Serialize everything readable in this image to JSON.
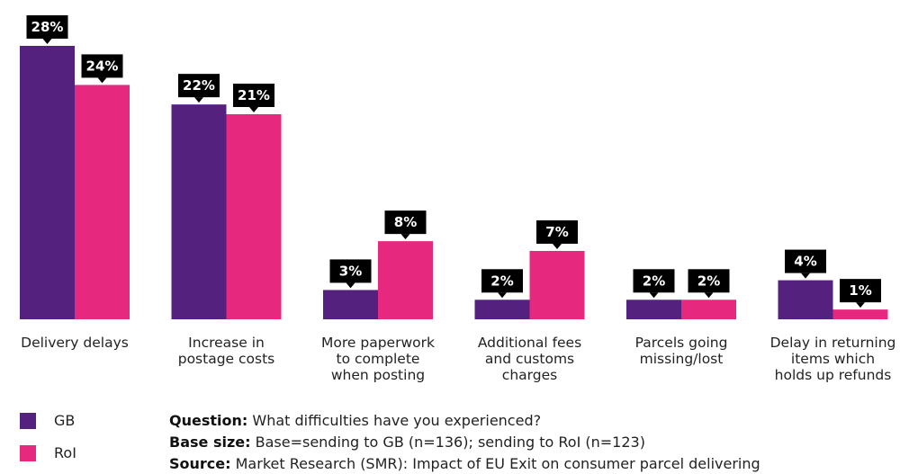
{
  "chart_data": {
    "type": "bar",
    "categories": [
      "Delivery delays",
      "Increase in postage costs",
      "More paperwork to complete when posting",
      "Additional fees and customs charges",
      "Parcels going missing/lost",
      "Delay in returning items which holds up refunds"
    ],
    "category_lines": [
      [
        "Delivery delays"
      ],
      [
        "Increase in",
        "postage costs"
      ],
      [
        "More paperwork",
        "to complete",
        "when posting"
      ],
      [
        "Additional fees",
        "and customs",
        "charges"
      ],
      [
        "Parcels going",
        "missing/lost"
      ],
      [
        "Delay in returning",
        "items which",
        "holds up refunds"
      ]
    ],
    "series": [
      {
        "name": "GB",
        "color": "#55217f",
        "values": [
          28,
          22,
          3,
          2,
          2,
          4
        ],
        "labels": [
          "28%",
          "22%",
          "3%",
          "2%",
          "2%",
          "4%"
        ]
      },
      {
        "name": "RoI",
        "color": "#e6287f",
        "values": [
          24,
          21,
          8,
          7,
          2,
          1
        ],
        "labels": [
          "24%",
          "21%",
          "8%",
          "7%",
          "2%",
          "1%"
        ]
      }
    ],
    "ylim": [
      0,
      30
    ],
    "grid": false,
    "legend_position": "bottom-left"
  },
  "notes": {
    "question_label": "Question:",
    "question_text": "What difficulties have you experienced?",
    "base_label": "Base size:",
    "base_text": "Base=sending to GB (n=136); sending to RoI (n=123)",
    "source_label": "Source:",
    "source_text": "Market Research (SMR): Impact of EU Exit on consumer parcel delivering"
  }
}
